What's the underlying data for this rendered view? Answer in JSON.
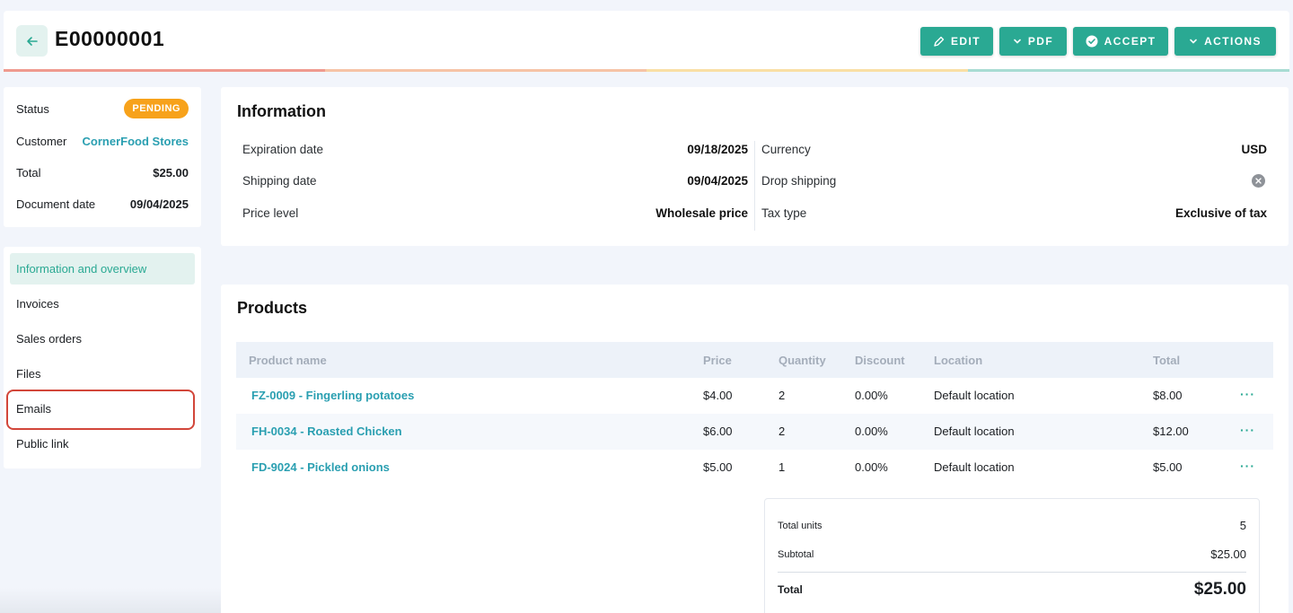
{
  "header": {
    "title": "E00000001",
    "buttons": {
      "edit": "EDIT",
      "pdf": "PDF",
      "accept": "ACCEPT",
      "actions": "ACTIONS"
    },
    "progress_colors": [
      "#ef9a8f",
      "#f6c3a6",
      "#f9dfa5",
      "#a8dcd3"
    ]
  },
  "summary": {
    "status_label": "Status",
    "status_value": "PENDING",
    "customer_label": "Customer",
    "customer_value": "CornerFood Stores",
    "total_label": "Total",
    "total_value": "$25.00",
    "date_label": "Document date",
    "date_value": "09/04/2025"
  },
  "nav": {
    "items": [
      {
        "label": "Information and overview",
        "active": true
      },
      {
        "label": "Invoices"
      },
      {
        "label": "Sales orders"
      },
      {
        "label": "Files"
      },
      {
        "label": "Emails",
        "highlighted": true
      },
      {
        "label": "Public link"
      }
    ]
  },
  "information": {
    "title": "Information",
    "left": [
      {
        "label": "Expiration date",
        "value": "09/18/2025"
      },
      {
        "label": "Shipping date",
        "value": "09/04/2025"
      },
      {
        "label": "Price level",
        "value": "Wholesale price"
      }
    ],
    "right": [
      {
        "label": "Currency",
        "value": "USD"
      },
      {
        "label": "Drop shipping",
        "value": "",
        "icon": "x-circle-icon"
      },
      {
        "label": "Tax type",
        "value": "Exclusive of tax"
      }
    ]
  },
  "products": {
    "title": "Products",
    "columns": [
      "Product name",
      "Price",
      "Quantity",
      "Discount",
      "Location",
      "Total"
    ],
    "rows": [
      {
        "name": "FZ-0009 - Fingerling potatoes",
        "price": "$4.00",
        "quantity": "2",
        "discount": "0.00%",
        "location": "Default location",
        "total": "$8.00"
      },
      {
        "name": "FH-0034 - Roasted Chicken",
        "price": "$6.00",
        "quantity": "2",
        "discount": "0.00%",
        "location": "Default location",
        "total": "$12.00"
      },
      {
        "name": "FD-9024 - Pickled onions",
        "price": "$5.00",
        "quantity": "1",
        "discount": "0.00%",
        "location": "Default location",
        "total": "$5.00"
      }
    ],
    "row_menu": "···",
    "totals": {
      "units_label": "Total units",
      "units_value": "5",
      "subtotal_label": "Subtotal",
      "subtotal_value": "$25.00",
      "total_label": "Total",
      "total_value": "$25.00"
    }
  },
  "colors": {
    "accent": "#2aa993",
    "link": "#2a9fb1",
    "pending": "#f7a21b",
    "highlight": "#d2463a"
  }
}
